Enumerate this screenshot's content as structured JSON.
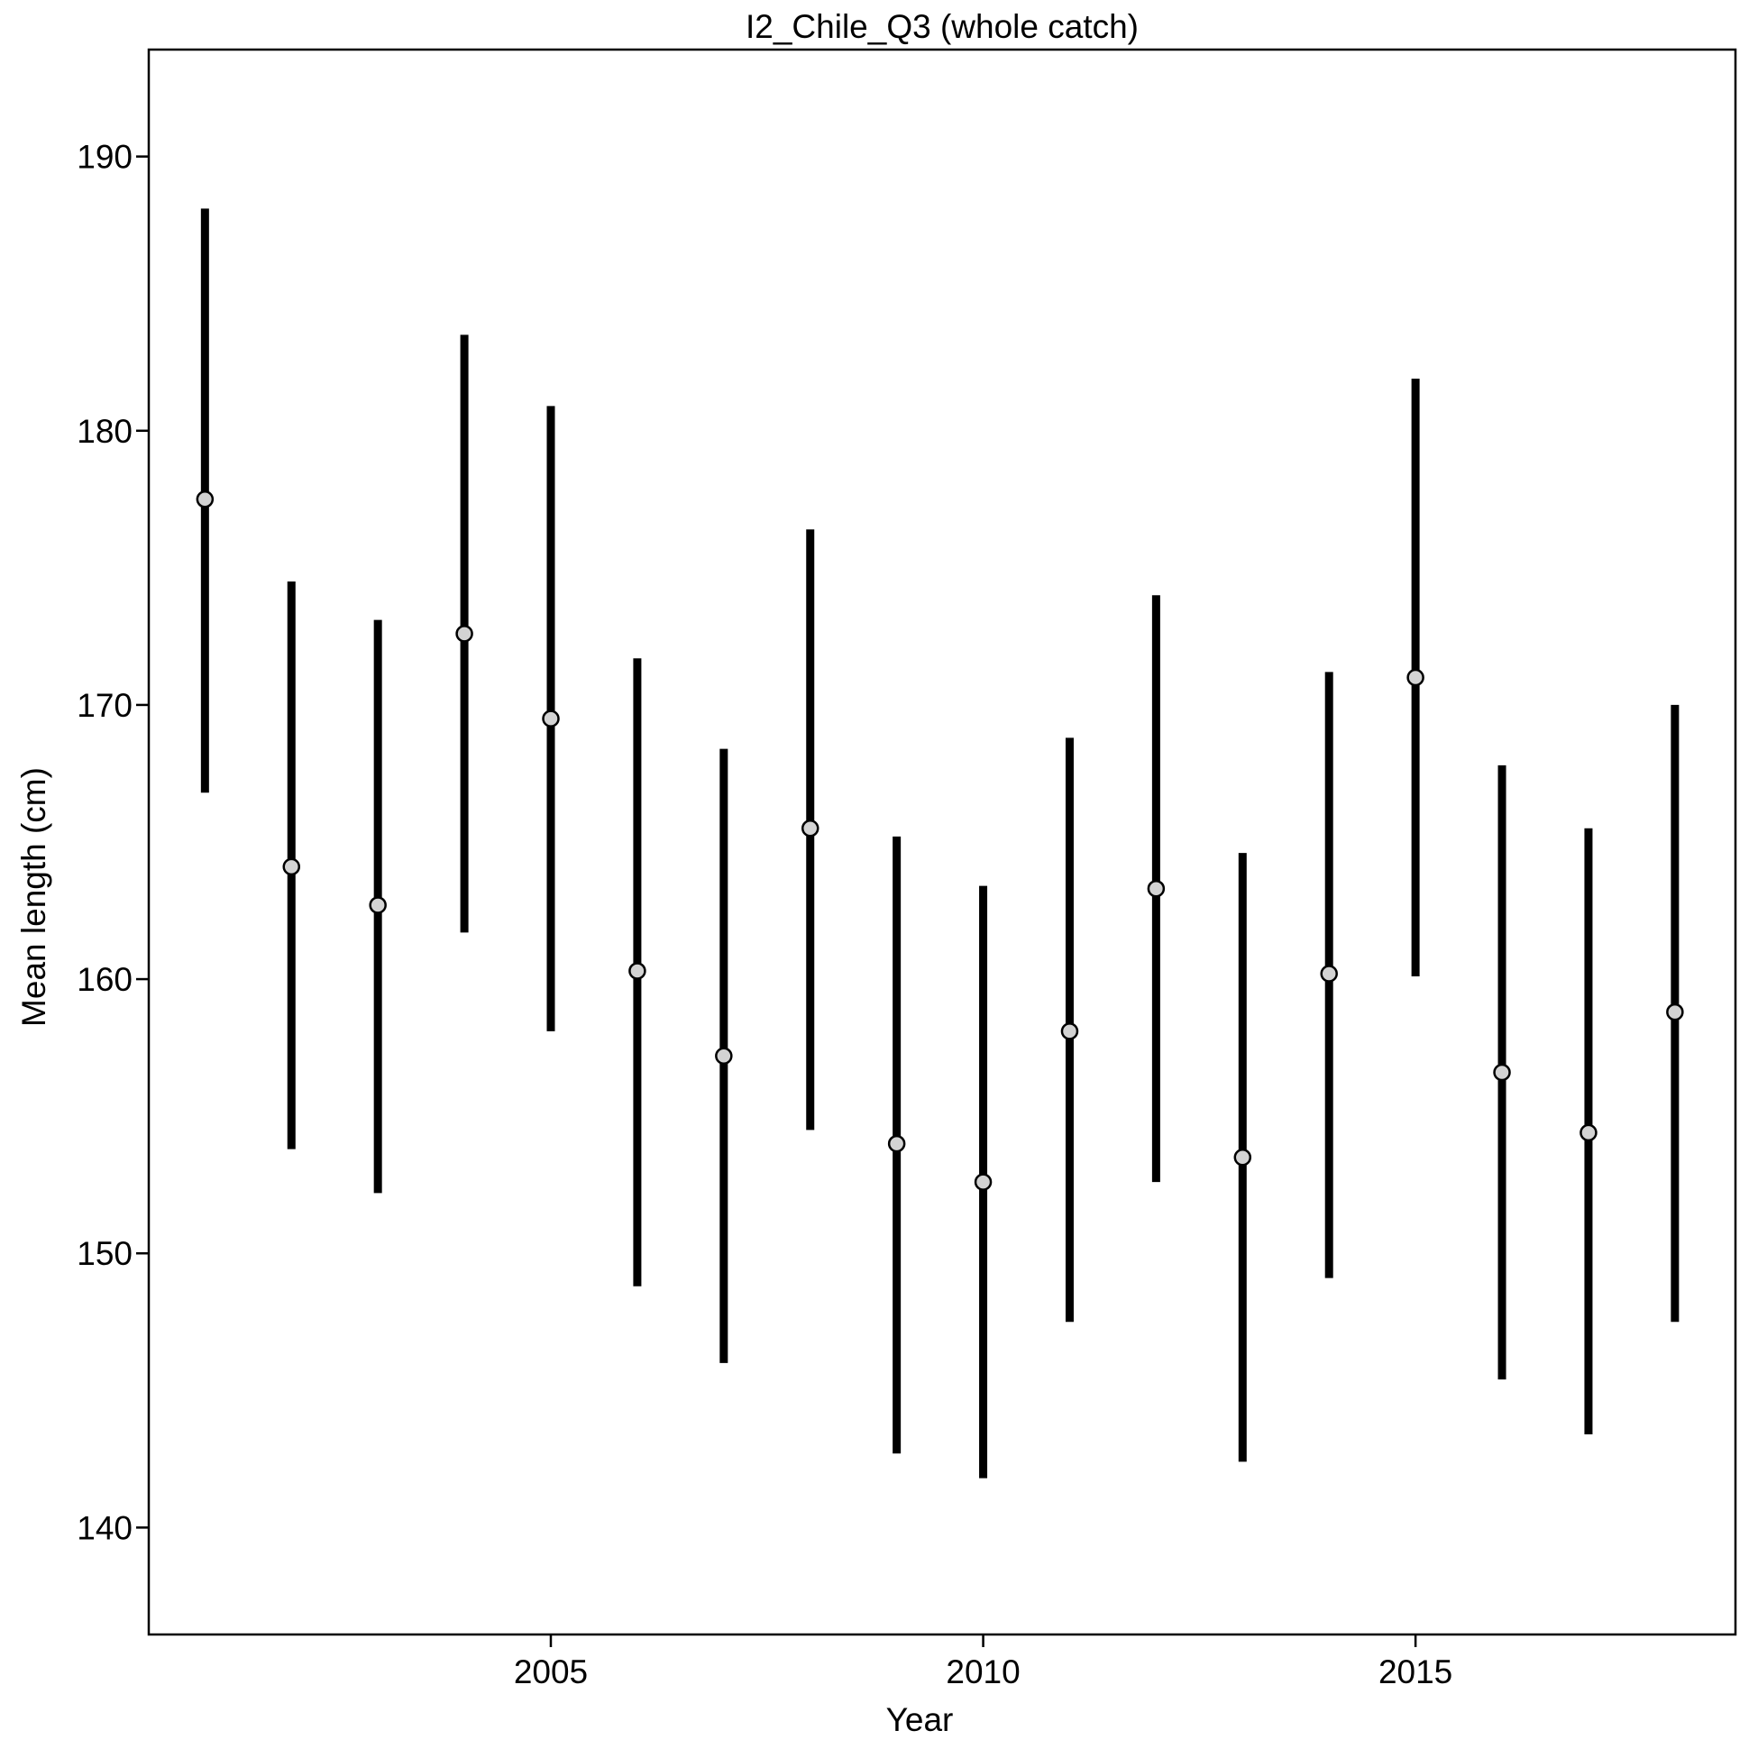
{
  "chart_data": {
    "type": "scatter",
    "title": "I2_Chile_Q3 (whole catch)",
    "xlabel": "Year",
    "ylabel": "Mean length (cm)",
    "xlim": [
      2000.35,
      2018.7
    ],
    "ylim": [
      136.1,
      193.9
    ],
    "xticks": [
      2005,
      2010,
      2015
    ],
    "xtick_labels": [
      "2005",
      "2010",
      "2015"
    ],
    "yticks": [
      140,
      150,
      160,
      170,
      180,
      190
    ],
    "ytick_labels": [
      "140",
      "150",
      "160",
      "170",
      "180",
      "190"
    ],
    "grid": false,
    "legend": "none",
    "point_color": "#d3d3d3",
    "error_bar_color": "#000000",
    "points": [
      {
        "x": 2001,
        "y": 177.5,
        "lower": 166.8,
        "upper": 188.1
      },
      {
        "x": 2002,
        "y": 164.1,
        "lower": 153.8,
        "upper": 174.5
      },
      {
        "x": 2003,
        "y": 162.7,
        "lower": 152.2,
        "upper": 173.1
      },
      {
        "x": 2004,
        "y": 172.6,
        "lower": 161.7,
        "upper": 183.5
      },
      {
        "x": 2005,
        "y": 169.5,
        "lower": 158.1,
        "upper": 180.9
      },
      {
        "x": 2006,
        "y": 160.3,
        "lower": 148.8,
        "upper": 171.7
      },
      {
        "x": 2007,
        "y": 157.2,
        "lower": 146.0,
        "upper": 168.4
      },
      {
        "x": 2008,
        "y": 165.5,
        "lower": 154.5,
        "upper": 176.4
      },
      {
        "x": 2009,
        "y": 154.0,
        "lower": 142.7,
        "upper": 165.2
      },
      {
        "x": 2010,
        "y": 152.6,
        "lower": 141.8,
        "upper": 163.4
      },
      {
        "x": 2011,
        "y": 158.1,
        "lower": 147.5,
        "upper": 168.8
      },
      {
        "x": 2012,
        "y": 163.3,
        "lower": 152.6,
        "upper": 174.0
      },
      {
        "x": 2013,
        "y": 153.5,
        "lower": 142.4,
        "upper": 164.6
      },
      {
        "x": 2014,
        "y": 160.2,
        "lower": 149.1,
        "upper": 171.2
      },
      {
        "x": 2015,
        "y": 171.0,
        "lower": 160.1,
        "upper": 181.9
      },
      {
        "x": 2016,
        "y": 156.6,
        "lower": 145.4,
        "upper": 167.8
      },
      {
        "x": 2017,
        "y": 154.4,
        "lower": 143.4,
        "upper": 165.5
      },
      {
        "x": 2018,
        "y": 158.8,
        "lower": 147.5,
        "upper": 170.0
      }
    ]
  }
}
